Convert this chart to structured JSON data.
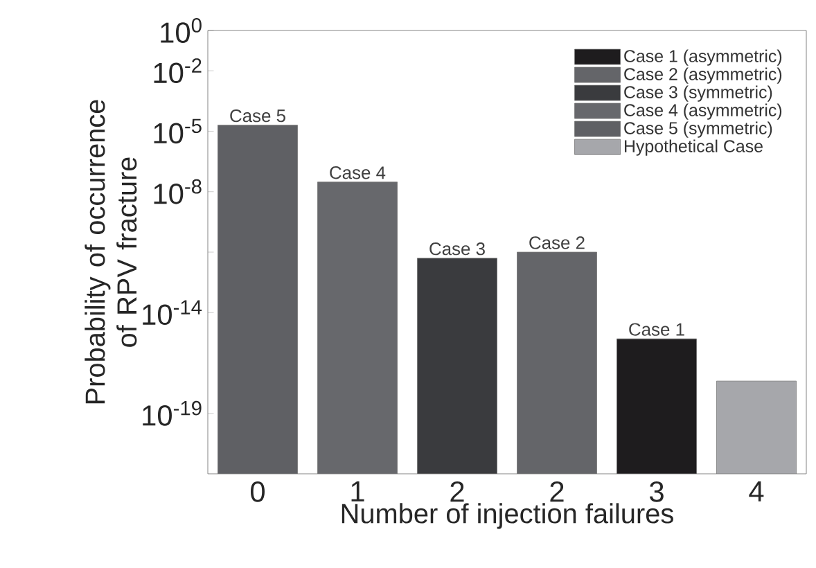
{
  "chart_data": {
    "type": "bar",
    "xlabel": "Number of injection failures",
    "ylabel": "Probability of occurrence of RPV fracture",
    "categories": [
      "0",
      "1",
      "2",
      "2",
      "3",
      "4"
    ],
    "series": [
      {
        "name": "Case 1 (asymmetric)",
        "color": "#1e1c1e",
        "values": [
          null,
          null,
          null,
          null,
          5e-16,
          null
        ],
        "value_labels": [
          null,
          null,
          null,
          null,
          "Case 1",
          null
        ]
      },
      {
        "name": "Case 2 (asymmetric)",
        "color": "#646569",
        "values": [
          null,
          null,
          null,
          1e-11,
          null,
          null
        ],
        "value_labels": [
          null,
          null,
          null,
          "Case 2",
          null,
          null
        ]
      },
      {
        "name": "Case 3 (symmetric)",
        "color": "#3a3b3e",
        "values": [
          null,
          null,
          5e-12,
          null,
          null,
          null
        ],
        "value_labels": [
          null,
          null,
          "Case 3",
          null,
          null,
          null
        ]
      },
      {
        "name": "Case 4 (asymmetric)",
        "color": "#67686c",
        "values": [
          null,
          3e-08,
          null,
          null,
          null,
          null
        ],
        "value_labels": [
          null,
          "Case 4",
          null,
          null,
          null,
          null
        ]
      },
      {
        "name": "Case 5 (symmetric)",
        "color": "#5f6064",
        "values": [
          2e-05,
          null,
          null,
          null,
          null,
          null
        ],
        "value_labels": [
          "Case 5",
          null,
          null,
          null,
          null,
          null
        ]
      },
      {
        "name": "Hypothetical Case",
        "color": "#a6a7ab",
        "values": [
          null,
          null,
          null,
          null,
          null,
          4e-18
        ]
      }
    ],
    "log": "y",
    "ylim": [
      1e-22,
      1
    ],
    "yticks": [
      {
        "value": 1e-19,
        "label": "10$^{-19}$"
      },
      {
        "value": 1e-14,
        "label": "10$^{-14}$"
      },
      {
        "value": 1e-11,
        "label": null
      },
      {
        "value": 1e-08,
        "label": "10$^{-8}$"
      },
      {
        "value": 1e-05,
        "label": "10$^{-5}$"
      },
      {
        "value": 0.01,
        "label": "10$^{-2}$"
      },
      {
        "value": 1,
        "label": "10$^{0}$"
      }
    ],
    "legend": "top right"
  }
}
